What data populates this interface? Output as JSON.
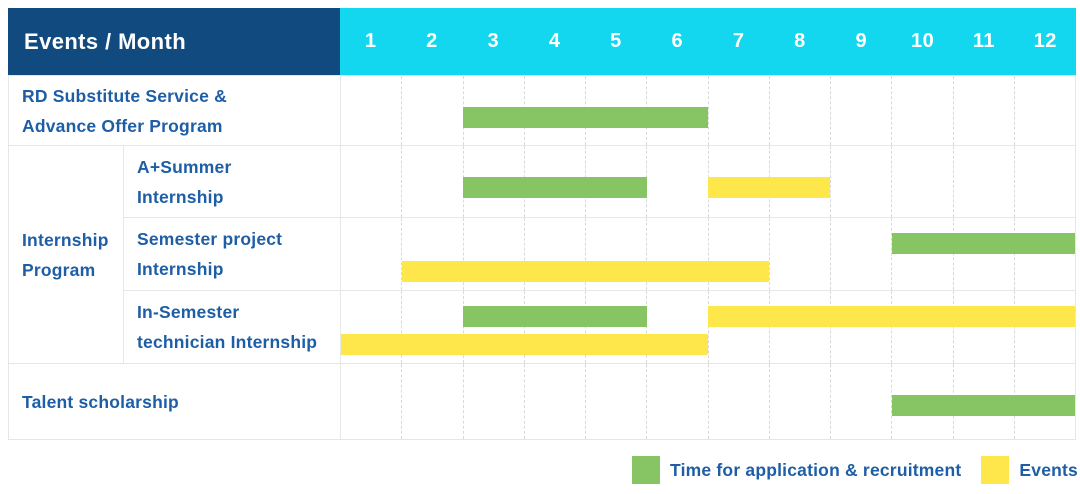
{
  "colors": {
    "header_navy": "#114a7e",
    "header_cyan": "#12d7ee",
    "application_green": "#87c464",
    "event_yellow": "#fde74a",
    "label_blue": "#1d5ea6"
  },
  "header": {
    "title": "Events / Month"
  },
  "chart_data": {
    "type": "table",
    "subtype": "gantt",
    "title": "Events / Month",
    "x_unit": "month",
    "x_ticks": [
      "1",
      "2",
      "3",
      "4",
      "5",
      "6",
      "7",
      "8",
      "9",
      "10",
      "11",
      "12"
    ],
    "x_range": [
      1,
      12
    ],
    "grid": true,
    "rows": [
      {
        "group": null,
        "label": "RD Substitute Service &\nAdvance Offer Program",
        "bars": [
          {
            "type": "application",
            "start_month": 3,
            "end_month": 6,
            "line": 1
          }
        ]
      },
      {
        "group": "Internship Program",
        "label": "A+Summer\nInternship",
        "bars": [
          {
            "type": "application",
            "start_month": 3,
            "end_month": 5,
            "line": 1
          },
          {
            "type": "event",
            "start_month": 7,
            "end_month": 8,
            "line": 1
          }
        ]
      },
      {
        "group": "Internship Program",
        "label": "Semester project\nInternship",
        "bars": [
          {
            "type": "application",
            "start_month": 10,
            "end_month": 12,
            "line": 1
          },
          {
            "type": "event",
            "start_month": 2,
            "end_month": 7,
            "line": 2
          }
        ]
      },
      {
        "group": "Internship Program",
        "label": "In-Semester\ntechnician Internship",
        "bars": [
          {
            "type": "application",
            "start_month": 3,
            "end_month": 5,
            "line": 1
          },
          {
            "type": "event",
            "start_month": 7,
            "end_month": 12,
            "line": 1
          },
          {
            "type": "event",
            "start_month": 1,
            "end_month": 6,
            "line": 2
          }
        ]
      },
      {
        "group": null,
        "label": "Talent scholarship",
        "bars": [
          {
            "type": "application",
            "start_month": 10,
            "end_month": 12,
            "line": 1
          }
        ]
      }
    ],
    "row_groups": [
      {
        "label": "Internship\nProgram",
        "row_indexes": [
          1,
          2,
          3
        ]
      }
    ],
    "legend": [
      {
        "key": "application",
        "label": "Time for application & recruitment"
      },
      {
        "key": "event",
        "label": "Events"
      }
    ],
    "legend_position": "bottom-right"
  }
}
